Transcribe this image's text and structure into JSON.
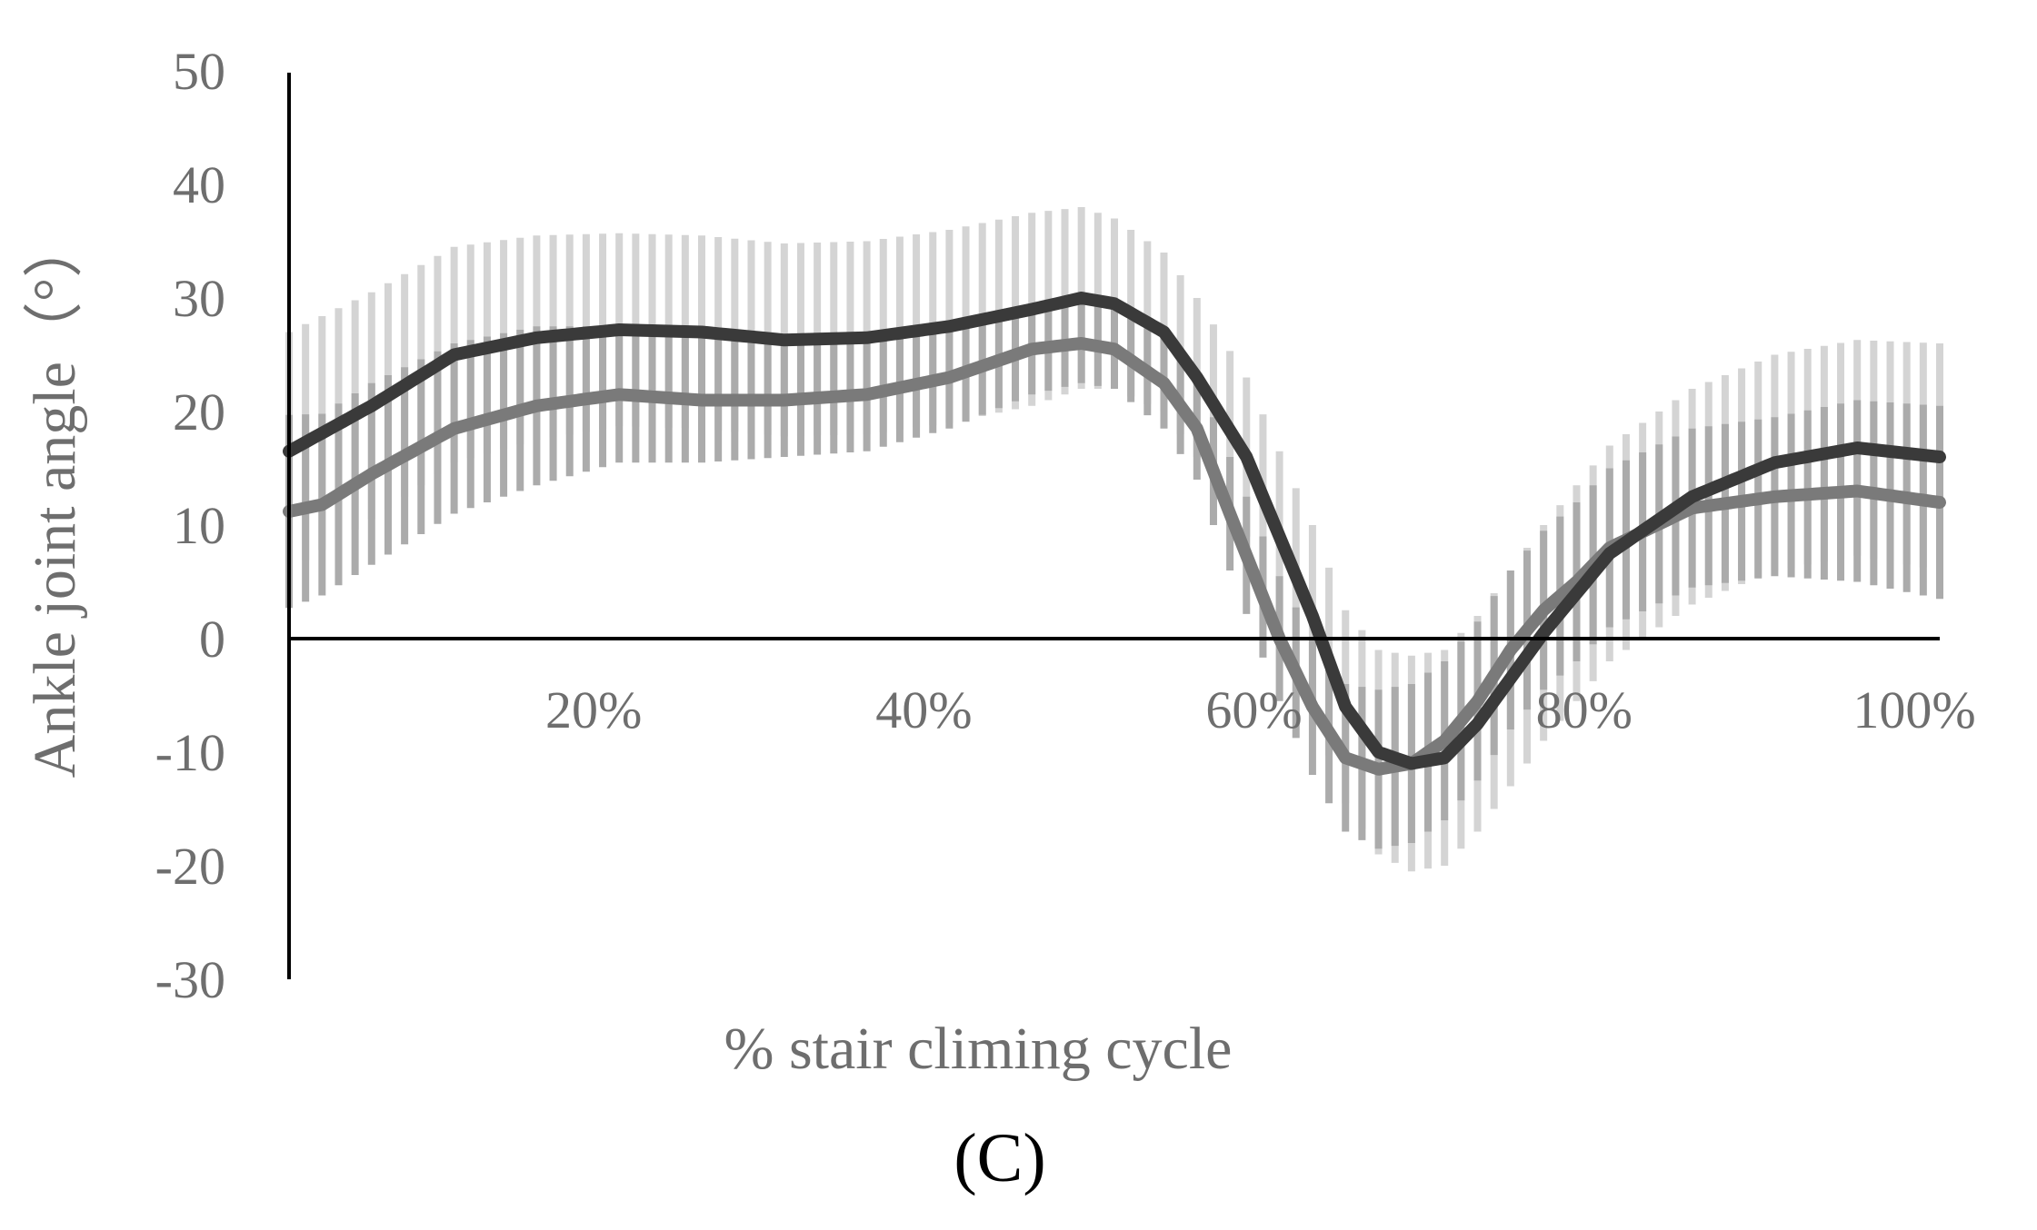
{
  "chart_data": {
    "type": "line",
    "title": "",
    "xlabel": "% stair climing cycle",
    "ylabel": "Ankle joint angle（°）",
    "panel_label": "(C)",
    "xlim": [
      0,
      100
    ],
    "ylim": [
      -30,
      50
    ],
    "x_ticks": [
      20,
      40,
      60,
      80,
      100
    ],
    "x_tick_labels": [
      "20%",
      "40%",
      "60%",
      "80%",
      "100%"
    ],
    "y_ticks": [
      50,
      40,
      30,
      20,
      10,
      0,
      -10,
      -20,
      -30
    ],
    "y_tick_labels": [
      "50",
      "40",
      "30",
      "20",
      "10",
      "0",
      "-10",
      "-20",
      "-30"
    ],
    "grid": false,
    "legend": "none",
    "error_bars": "standard deviation shown as vertical bars at each 1% of cycle",
    "series": [
      {
        "color": "#3a3a3a",
        "error_color": "#d4d4d4",
        "x": [
          0,
          5,
          10,
          15,
          20,
          25,
          30,
          35,
          40,
          45,
          48,
          50,
          53,
          55,
          58,
          60,
          62,
          64,
          66,
          68,
          70,
          72,
          74,
          76,
          78,
          80,
          85,
          90,
          95,
          100
        ],
        "values": [
          16.5,
          20.5,
          25,
          26.5,
          27.2,
          27,
          26.3,
          26.5,
          27.5,
          29,
          30,
          29.5,
          27,
          23,
          16,
          9,
          2,
          -6,
          -10,
          -11,
          -10.5,
          -7.5,
          -3.5,
          0.5,
          4,
          7.5,
          12.5,
          15.5,
          16.8,
          16
        ],
        "error": [
          10.5,
          10,
          9.5,
          9,
          8.5,
          8.5,
          8.5,
          8.5,
          8.5,
          8.5,
          8,
          7.5,
          7,
          7,
          7,
          7.5,
          8,
          8.5,
          9,
          9.5,
          9.5,
          9.5,
          9.5,
          9.5,
          9.5,
          9.5,
          9.5,
          9.5,
          9.5,
          10
        ]
      },
      {
        "color": "#7a7a7a",
        "error_color": "#ababab",
        "x": [
          0,
          2,
          5,
          10,
          15,
          20,
          25,
          30,
          35,
          40,
          45,
          48,
          50,
          53,
          55,
          57,
          60,
          62,
          64,
          66,
          68,
          70,
          72,
          74,
          76,
          78,
          80,
          85,
          90,
          95,
          100
        ],
        "values": [
          11.2,
          11.8,
          14.5,
          18.5,
          20.5,
          21.5,
          21,
          21,
          21.5,
          23,
          25.5,
          26,
          25.5,
          22.5,
          18.5,
          11,
          0,
          -6,
          -10.5,
          -11.5,
          -11,
          -9,
          -5.5,
          -1,
          2.5,
          5,
          8,
          11.5,
          12.5,
          13,
          12
        ],
        "error": [
          8.5,
          8,
          8,
          7.5,
          7,
          6,
          5.5,
          5,
          5,
          4.5,
          4,
          3.5,
          3.5,
          4,
          4.5,
          5,
          5.5,
          6,
          6.5,
          7,
          7,
          7,
          7,
          7,
          7,
          7,
          7,
          7,
          7,
          8,
          8.5
        ]
      }
    ]
  }
}
